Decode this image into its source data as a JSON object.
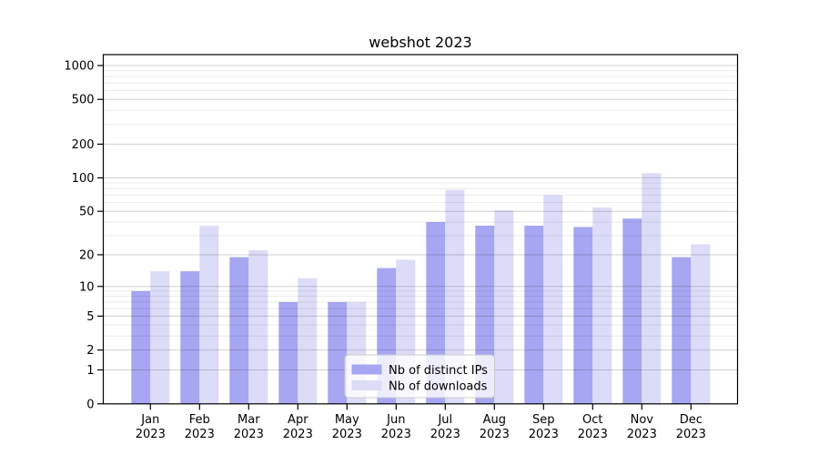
{
  "chart_data": {
    "type": "bar",
    "title": "webshot 2023",
    "categories": [
      "Jan",
      "Feb",
      "Mar",
      "Apr",
      "May",
      "Jun",
      "Jul",
      "Aug",
      "Sep",
      "Oct",
      "Nov",
      "Dec"
    ],
    "category_year": "2023",
    "series": [
      {
        "name": "Nb of distinct IPs",
        "color": "#a6a6f2",
        "values": [
          9,
          14,
          19,
          7,
          7,
          15,
          40,
          37,
          37,
          36,
          43,
          19
        ]
      },
      {
        "name": "Nb of downloads",
        "color": "#dcdcf8",
        "values": [
          14,
          37,
          22,
          12,
          7,
          18,
          78,
          51,
          70,
          54,
          110,
          25
        ]
      }
    ],
    "xlabel": "",
    "ylabel": "",
    "axis": {
      "scale": "log1p",
      "ylim": [
        0,
        1250
      ],
      "major_ticks": [
        0,
        1,
        2,
        5,
        10,
        20,
        50,
        100,
        200,
        500,
        1000
      ],
      "minor_ticks": [
        3,
        4,
        6,
        7,
        8,
        9,
        30,
        40,
        60,
        70,
        80,
        90,
        300,
        400,
        600,
        700,
        800,
        900
      ],
      "grid": "on"
    },
    "legend": {
      "position": "lower-center-inside",
      "entries": [
        "Nb of distinct IPs",
        "Nb of downloads"
      ]
    },
    "colors": {
      "grid_major": "rgba(0,0,0,0.18)",
      "grid_minor": "rgba(0,0,0,0.08)",
      "spine": "#000000",
      "text": "#000000",
      "legend_bg": "rgba(255,255,255,0.8)",
      "legend_border": "#cccccc"
    }
  }
}
